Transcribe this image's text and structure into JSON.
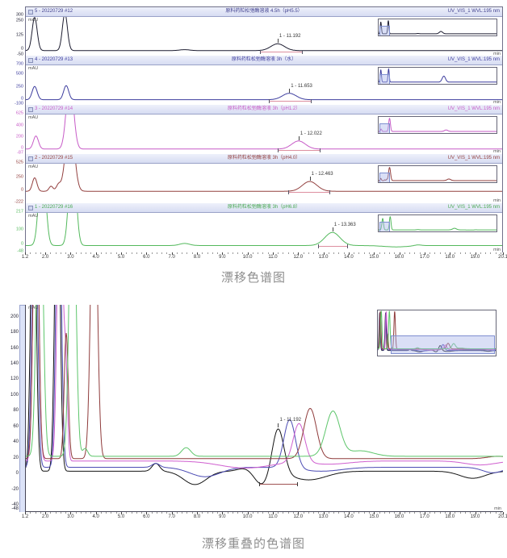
{
  "captions": {
    "top": "漂移色谱图",
    "bottom": "漂移重叠的色谱图"
  },
  "axis": {
    "xlim": [
      1.2,
      20.1
    ],
    "x_ticks": [
      1.2,
      2,
      3,
      4,
      5,
      6,
      7,
      8,
      9,
      10,
      11,
      12,
      13,
      14,
      15,
      16,
      17,
      18,
      19,
      20.1
    ],
    "x_tick_labels": [
      "1.2",
      "2.0",
      "3.0",
      "4.0",
      "5.0",
      "6.0",
      "7.0",
      "8.0",
      "9.0",
      "10.0",
      "11.0",
      "12.0",
      "13.0",
      "14.0",
      "15.0",
      "16.0",
      "17.0",
      "18.0",
      "19.0",
      "20.1"
    ],
    "x_unit": "min",
    "y_unit": "mAU"
  },
  "chart_data": {
    "type": "line",
    "title": "漂移色谱图 / 漂移重叠的色谱图",
    "panels": [
      {
        "run_label": "5 - 20220729 #12",
        "title": "原料药粒松弛酶溶液 4.5h（pH5.5）",
        "detector": "UV_VIS_1 WVL:195 nm",
        "color": "#1c1c30",
        "header_color": "#3c3c8c",
        "ylim": [
          -50,
          300
        ],
        "y_ticks": [
          300,
          250,
          125,
          0,
          -50
        ],
        "baseline": 2,
        "peaks": [
          [
            1.55,
            293,
            0.1
          ],
          [
            2.75,
            330,
            0.1
          ],
          [
            7.5,
            8,
            0.2
          ],
          [
            11.192,
            60,
            0.27
          ]
        ],
        "main_peak": {
          "t": 11.192,
          "label": "1 - 11.192"
        },
        "integration": [
          10.5,
          12.15
        ]
      },
      {
        "run_label": "4 - 20220729 #13",
        "title": "原料药粒松弛酶溶液 3h（水）",
        "detector": "UV_VIS_1 WVL:195 nm",
        "color": "#3c3c9e",
        "header_color": "#3c3c9e",
        "ylim": [
          -100,
          700
        ],
        "y_ticks": [
          700,
          500,
          250,
          0,
          -100
        ],
        "baseline": 4,
        "peaks": [
          [
            1.55,
            268,
            0.1
          ],
          [
            2.8,
            285,
            0.1
          ],
          [
            11.653,
            130,
            0.27
          ]
        ],
        "main_peak": {
          "t": 11.653,
          "label": "1 - 11.653"
        },
        "integration": [
          10.85,
          12.5
        ]
      },
      {
        "run_label": "3 - 20220729 #14",
        "title": "原料药粒松弛酶溶液 3h（pH1.2）",
        "detector": "UV_VIS_1 WVL:195 nm",
        "color": "#c75bc7",
        "header_color": "#c75bc7",
        "ylim": [
          -87,
          625
        ],
        "y_ticks": [
          625,
          400,
          200,
          0,
          -87
        ],
        "baseline": 3,
        "peaks": [
          [
            1.6,
            235,
            0.1
          ],
          [
            2.95,
            1300,
            0.14
          ],
          [
            12.022,
            145,
            0.27
          ]
        ],
        "main_peak": {
          "t": 12.022,
          "label": "1 - 12.022"
        },
        "integration": [
          11.2,
          12.85
        ]
      },
      {
        "run_label": "2 - 20220729 #15",
        "title": "原料药粒松弛酶溶液 3h（pH4.0）",
        "detector": "UV_VIS_1 WVL:195 nm",
        "color": "#93403f",
        "header_color": "#93403f",
        "ylim": [
          -222,
          525
        ],
        "y_ticks": [
          525,
          250,
          0,
          -222
        ],
        "baseline": 4,
        "peaks": [
          [
            1.55,
            255,
            0.09
          ],
          [
            2.2,
            95,
            0.08
          ],
          [
            2.5,
            125,
            0.09
          ],
          [
            2.95,
            1500,
            0.16
          ],
          [
            12.463,
            185,
            0.29
          ]
        ],
        "main_peak": {
          "t": 12.463,
          "label": "1 - 12.463"
        },
        "integration": [
          11.6,
          13.25
        ]
      },
      {
        "run_label": "1 - 20220729 #16",
        "title": "原料药粒松弛酶溶液 3h（pH6.8）",
        "detector": "UV_VIS_1 WVL:195 nm",
        "color": "#53b95c",
        "header_color": "#47a851",
        "ylim": [
          -48,
          217
        ],
        "y_ticks": [
          217,
          100,
          0,
          -48
        ],
        "baseline": -2,
        "peaks": [
          [
            1.85,
            620,
            0.13
          ],
          [
            3.05,
            720,
            0.13
          ],
          [
            7.5,
            14,
            0.2
          ],
          [
            13.363,
            88,
            0.3
          ],
          [
            15.9,
            -9,
            0.5
          ],
          [
            16.75,
            6,
            0.15
          ]
        ],
        "main_peak": {
          "t": 13.363,
          "label": "1 - 13.363"
        },
        "integration": [
          12.8,
          13.95
        ]
      }
    ],
    "overlay": {
      "ylim": [
        -48,
        215
      ],
      "y_ticks": [
        200,
        180,
        160,
        140,
        120,
        100,
        80,
        60,
        40,
        20,
        0,
        -20,
        -40,
        -48
      ],
      "annotation": {
        "t": 11.192,
        "label": "1 - 11.192"
      },
      "integration": [
        10.45,
        11.95
      ],
      "integration_v": -13,
      "series": [
        {
          "name": "5 - 20220729 #12",
          "color": "#141414",
          "baseline": 3,
          "peaks": [
            [
              1.5,
              420,
              0.1
            ],
            [
              2.45,
              420,
              0.1
            ],
            [
              6.35,
              10,
              0.15
            ],
            [
              7.9,
              -17,
              0.45
            ],
            [
              9.9,
              4,
              0.3
            ],
            [
              10.55,
              -17,
              0.3
            ],
            [
              11.192,
              58,
              0.23
            ],
            [
              12.4,
              -11,
              0.7
            ],
            [
              18.9,
              -9,
              0.5
            ]
          ]
        },
        {
          "name": "4 - 20220729 #13",
          "color": "#4b4bb4",
          "baseline": 8,
          "peaks": [
            [
              1.55,
              420,
              0.1
            ],
            [
              2.5,
              420,
              0.1
            ],
            [
              6.35,
              5,
              0.15
            ],
            [
              8.3,
              -12,
              0.6
            ],
            [
              11.653,
              62,
              0.23
            ],
            [
              12.9,
              -5,
              0.8
            ],
            [
              19.7,
              -7,
              0.4
            ]
          ]
        },
        {
          "name": "3 - 20220729 #14",
          "color": "#cf5fcf",
          "baseline": 16,
          "peaks": [
            [
              1.6,
              420,
              0.1
            ],
            [
              2.55,
              420,
              0.1
            ],
            [
              2.78,
              120,
              0.07
            ],
            [
              9.9,
              -9,
              1.0
            ],
            [
              12.022,
              50,
              0.23
            ],
            [
              13.2,
              -4,
              0.8
            ],
            [
              19.2,
              -5,
              0.6
            ]
          ]
        },
        {
          "name": "2 - 20220729 #15",
          "color": "#8f3b3b",
          "baseline": 19,
          "peaks": [
            [
              1.6,
              420,
              0.1
            ],
            [
              2.8,
              160,
              0.08
            ],
            [
              3.9,
              420,
              0.12
            ],
            [
              12.463,
              64,
              0.25
            ],
            [
              19.9,
              3,
              0.4
            ]
          ]
        },
        {
          "name": "1 - 20220729 #16",
          "color": "#5cc56a",
          "baseline": 22,
          "peaks": [
            [
              1.75,
              420,
              0.12
            ],
            [
              3.05,
              420,
              0.12
            ],
            [
              3.55,
              10,
              0.1
            ],
            [
              7.55,
              11,
              0.18
            ],
            [
              13.363,
              57,
              0.28
            ],
            [
              14.45,
              7,
              0.5
            ]
          ]
        }
      ]
    }
  }
}
